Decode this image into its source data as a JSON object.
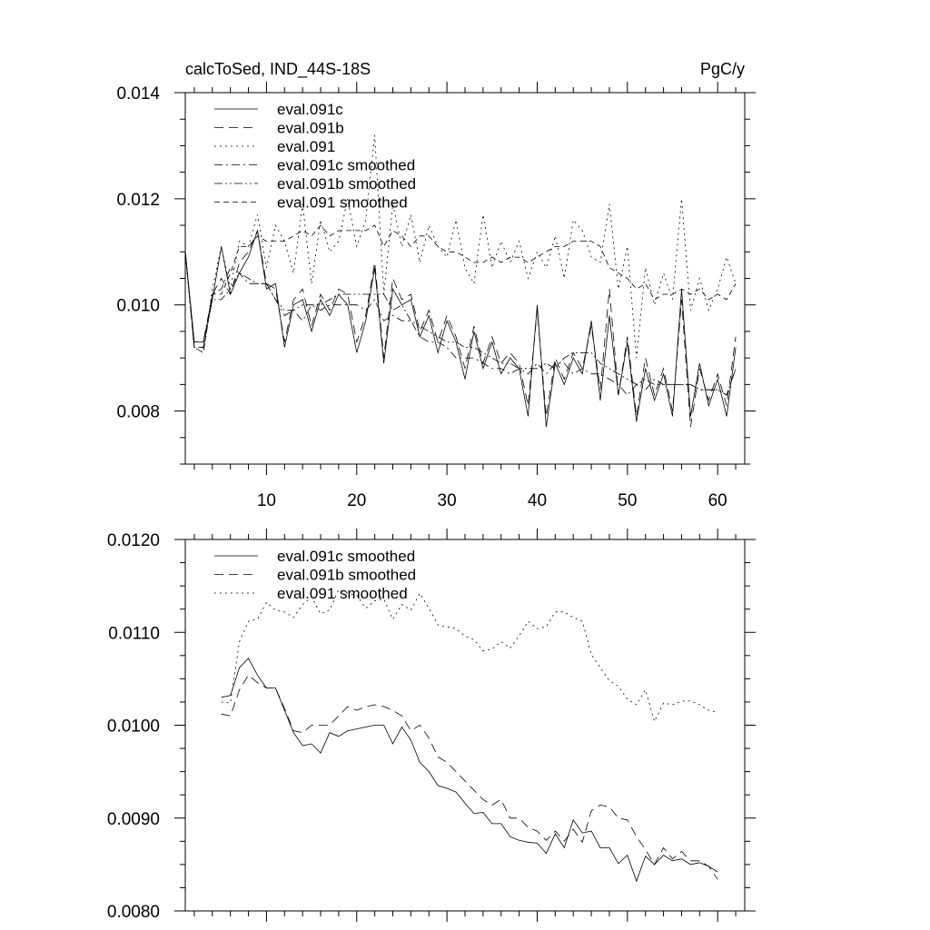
{
  "chart_data": [
    {
      "type": "line",
      "title": "calcToSed, IND_44S-18S",
      "units": "PgC/y",
      "xlabel": "",
      "ylabel": "",
      "xlim": [
        1,
        63
      ],
      "ylim": [
        0.007,
        0.014
      ],
      "x_ticks": [
        10,
        20,
        30,
        40,
        50,
        60
      ],
      "x_tick_labels": [
        "10",
        "20",
        "30",
        "40",
        "50",
        "60"
      ],
      "y_ticks": [
        0.008,
        0.01,
        0.012,
        0.014
      ],
      "y_tick_labels": [
        "0.008",
        "0.010",
        "0.012",
        "0.014"
      ],
      "legend_position": "top-left",
      "x": [
        1,
        2,
        3,
        4,
        5,
        6,
        7,
        8,
        9,
        10,
        11,
        12,
        13,
        14,
        15,
        16,
        17,
        18,
        19,
        20,
        21,
        22,
        23,
        24,
        25,
        26,
        27,
        28,
        29,
        30,
        31,
        32,
        33,
        34,
        35,
        36,
        37,
        38,
        39,
        40,
        41,
        42,
        43,
        44,
        45,
        46,
        47,
        48,
        49,
        50,
        51,
        52,
        53,
        54,
        55,
        56,
        57,
        58,
        59,
        60,
        61,
        62
      ],
      "series": [
        {
          "name": "eval.091c",
          "dash": "solid",
          "values": [
            0.011,
            0.0093,
            0.0093,
            0.0101,
            0.0111,
            0.0102,
            0.0106,
            0.0109,
            0.0114,
            0.0103,
            0.0104,
            0.0092,
            0.01,
            0.0101,
            0.0095,
            0.0101,
            0.0098,
            0.0102,
            0.01,
            0.0091,
            0.0097,
            0.0107,
            0.0089,
            0.0103,
            0.01,
            0.0101,
            0.0094,
            0.0098,
            0.0091,
            0.0097,
            0.0093,
            0.0086,
            0.0095,
            0.0088,
            0.0093,
            0.0087,
            0.009,
            0.0088,
            0.0079,
            0.01,
            0.0077,
            0.0089,
            0.0085,
            0.009,
            0.0087,
            0.0097,
            0.0082,
            0.0098,
            0.0083,
            0.0093,
            0.0078,
            0.0088,
            0.0082,
            0.0087,
            0.0079,
            0.0103,
            0.0079,
            0.0089,
            0.0081,
            0.0086,
            0.0079,
            0.0092
          ]
        },
        {
          "name": "eval.091b",
          "dash": "longdash",
          "values": [
            0.011,
            0.0092,
            0.0092,
            0.0102,
            0.0105,
            0.0102,
            0.0108,
            0.011,
            0.0114,
            0.0104,
            0.0103,
            0.0093,
            0.0101,
            0.0103,
            0.0096,
            0.0102,
            0.0099,
            0.0103,
            0.0102,
            0.0093,
            0.0098,
            0.0108,
            0.009,
            0.0105,
            0.0101,
            0.0102,
            0.0095,
            0.0099,
            0.0093,
            0.0098,
            0.0094,
            0.0088,
            0.0096,
            0.0089,
            0.0094,
            0.0089,
            0.0091,
            0.0089,
            0.0081,
            0.0099,
            0.0079,
            0.009,
            0.0086,
            0.0091,
            0.0088,
            0.0096,
            0.0084,
            0.0103,
            0.0083,
            0.0094,
            0.0079,
            0.009,
            0.0083,
            0.0088,
            0.008,
            0.0101,
            0.0077,
            0.0088,
            0.0082,
            0.0087,
            0.0081,
            0.0094
          ]
        },
        {
          "name": "eval.091",
          "dash": "dotted",
          "values": [
            0.011,
            0.0092,
            0.0091,
            0.0103,
            0.0111,
            0.0103,
            0.0112,
            0.0111,
            0.0117,
            0.0107,
            0.0115,
            0.0112,
            0.0106,
            0.0119,
            0.0104,
            0.0116,
            0.011,
            0.0112,
            0.012,
            0.0111,
            0.0116,
            0.0132,
            0.0102,
            0.0119,
            0.0111,
            0.0117,
            0.0108,
            0.0115,
            0.0111,
            0.0109,
            0.0116,
            0.0107,
            0.0104,
            0.0117,
            0.0107,
            0.0112,
            0.0108,
            0.0112,
            0.0105,
            0.011,
            0.0107,
            0.0113,
            0.0105,
            0.0116,
            0.0114,
            0.0109,
            0.0108,
            0.0119,
            0.0103,
            0.0111,
            0.009,
            0.0107,
            0.01,
            0.0106,
            0.0101,
            0.012,
            0.0099,
            0.0105,
            0.0099,
            0.0103,
            0.0109,
            0.0104
          ]
        },
        {
          "name": "eval.091c smoothed",
          "dash": "dashdot",
          "values": [
            0.011,
            0.0093,
            0.0093,
            0.0102,
            0.0103,
            0.0107,
            0.0106,
            0.0104,
            0.0104,
            0.0104,
            0.0101,
            0.0098,
            0.0099,
            0.0097,
            0.01,
            0.0099,
            0.01,
            0.01,
            0.01,
            0.01,
            0.0099,
            0.0101,
            0.0097,
            0.0098,
            0.0097,
            0.0097,
            0.0094,
            0.0093,
            0.0093,
            0.0092,
            0.009,
            0.009,
            0.009,
            0.0089,
            0.0088,
            0.0088,
            0.0087,
            0.0088,
            0.0087,
            0.0089,
            0.0087,
            0.0089,
            0.0089,
            0.0087,
            0.0088,
            0.0087,
            0.0087,
            0.0086,
            0.0085,
            0.0083,
            0.0085,
            0.0084,
            0.0086,
            0.0085,
            0.0085,
            0.0085,
            0.0085,
            0.0084,
            0.0084,
            0.0084,
            0.0083,
            0.0088
          ]
        },
        {
          "name": "eval.091b smoothed",
          "dash": "dashdotdot",
          "values": [
            0.011,
            0.0092,
            0.0092,
            0.0101,
            0.0101,
            0.0103,
            0.0106,
            0.0105,
            0.0104,
            0.0104,
            0.0101,
            0.0099,
            0.0099,
            0.01,
            0.01,
            0.01,
            0.0101,
            0.0102,
            0.0102,
            0.0102,
            0.0102,
            0.0102,
            0.0102,
            0.0099,
            0.01,
            0.0097,
            0.0096,
            0.0095,
            0.0094,
            0.0093,
            0.0093,
            0.0092,
            0.0092,
            0.0091,
            0.009,
            0.0089,
            0.0089,
            0.0088,
            0.0088,
            0.0088,
            0.0089,
            0.0088,
            0.009,
            0.0091,
            0.0091,
            0.0091,
            0.0089,
            0.0088,
            0.0087,
            0.0086,
            0.0085,
            0.0086,
            0.0085,
            0.0085,
            0.0085,
            0.0085,
            0.0085,
            0.0084,
            0.0084,
            0.0084,
            0.0083,
            0.0088
          ]
        },
        {
          "name": "eval.091 smoothed",
          "dash": "mediumdash",
          "values": [
            0.011,
            0.0092,
            0.0091,
            0.0102,
            0.0102,
            0.0106,
            0.0111,
            0.0111,
            0.0113,
            0.0112,
            0.0112,
            0.0112,
            0.0113,
            0.0114,
            0.0113,
            0.0115,
            0.0113,
            0.0114,
            0.0114,
            0.0114,
            0.0114,
            0.0115,
            0.0111,
            0.0114,
            0.0113,
            0.0111,
            0.0113,
            0.0113,
            0.0111,
            0.011,
            0.011,
            0.0109,
            0.0108,
            0.0108,
            0.0109,
            0.0108,
            0.0109,
            0.0109,
            0.0108,
            0.0109,
            0.011,
            0.0111,
            0.0111,
            0.0112,
            0.0112,
            0.0112,
            0.0111,
            0.0107,
            0.0106,
            0.0105,
            0.0103,
            0.0104,
            0.0101,
            0.0102,
            0.0102,
            0.0103,
            0.0102,
            0.0103,
            0.0101,
            0.0102,
            0.0101,
            0.0104
          ]
        }
      ]
    },
    {
      "type": "line",
      "title": "",
      "xlabel": "",
      "ylabel": "",
      "xlim": [
        1,
        63
      ],
      "ylim": [
        0.008,
        0.012
      ],
      "x_ticks": [
        10,
        20,
        30,
        40,
        50,
        60
      ],
      "y_ticks": [
        0.008,
        0.009,
        0.01,
        0.011,
        0.012
      ],
      "y_tick_labels": [
        "0.0080",
        "0.0090",
        "0.0100",
        "0.0110",
        "0.0120"
      ],
      "legend_position": "top-left",
      "x": [
        5,
        6,
        7,
        8,
        9,
        10,
        11,
        12,
        13,
        14,
        15,
        16,
        17,
        18,
        19,
        20,
        21,
        22,
        23,
        24,
        25,
        26,
        27,
        28,
        29,
        30,
        31,
        32,
        33,
        34,
        35,
        36,
        37,
        38,
        39,
        40,
        41,
        42,
        43,
        44,
        45,
        46,
        47,
        48,
        49,
        50,
        51,
        52,
        53,
        54,
        55,
        56,
        57,
        58,
        59,
        60
      ],
      "series": [
        {
          "name": "eval.091c smoothed",
          "dash": "solid",
          "values": [
            0.0103,
            0.01032,
            0.01062,
            0.01072,
            0.01054,
            0.0104,
            0.0104,
            0.01016,
            0.00992,
            0.00978,
            0.0098,
            0.0097,
            0.00992,
            0.00988,
            0.00994,
            0.00996,
            0.00998,
            0.01,
            0.01,
            0.0098,
            0.00998,
            0.00984,
            0.0096,
            0.0095,
            0.00935,
            0.00932,
            0.00928,
            0.00916,
            0.00905,
            0.00906,
            0.00894,
            0.00894,
            0.0088,
            0.00876,
            0.00874,
            0.00873,
            0.00862,
            0.00883,
            0.00868,
            0.00898,
            0.00884,
            0.00886,
            0.00868,
            0.00868,
            0.00851,
            0.0086,
            0.00832,
            0.00859,
            0.0085,
            0.0086,
            0.00854,
            0.00856,
            0.0085,
            0.00852,
            0.00848,
            0.00842
          ]
        },
        {
          "name": "eval.091b smoothed",
          "dash": "longdash",
          "values": [
            0.01012,
            0.0101,
            0.01038,
            0.01054,
            0.01046,
            0.0104,
            0.0104,
            0.01018,
            0.00994,
            0.00992,
            0.01,
            0.01,
            0.01,
            0.0101,
            0.0102,
            0.01016,
            0.0102,
            0.01022,
            0.0102,
            0.01016,
            0.0101,
            0.00994,
            0.01,
            0.00986,
            0.00966,
            0.0096,
            0.0095,
            0.0094,
            0.0093,
            0.0092,
            0.00914,
            0.0092,
            0.009,
            0.009,
            0.0089,
            0.00886,
            0.00876,
            0.00886,
            0.00875,
            0.00888,
            0.00874,
            0.00908,
            0.00914,
            0.00912,
            0.009,
            0.00898,
            0.0088,
            0.00866,
            0.0085,
            0.00868,
            0.00856,
            0.00864,
            0.00854,
            0.00854,
            0.00848,
            0.00834
          ]
        },
        {
          "name": "eval.091 smoothed",
          "dash": "dotted",
          "values": [
            0.01025,
            0.01024,
            0.0109,
            0.01112,
            0.01114,
            0.01132,
            0.01124,
            0.01122,
            0.01116,
            0.0113,
            0.01138,
            0.0112,
            0.01124,
            0.01146,
            0.01142,
            0.0114,
            0.01126,
            0.01134,
            0.01136,
            0.01114,
            0.0113,
            0.01124,
            0.01142,
            0.01126,
            0.01108,
            0.01106,
            0.01104,
            0.01096,
            0.01092,
            0.0108,
            0.01082,
            0.0109,
            0.01083,
            0.01096,
            0.01112,
            0.01104,
            0.01106,
            0.01122,
            0.01122,
            0.01116,
            0.01112,
            0.01076,
            0.01062,
            0.01048,
            0.01042,
            0.01028,
            0.01022,
            0.01038,
            0.01004,
            0.01024,
            0.01022,
            0.01026,
            0.01026,
            0.01022,
            0.01016,
            0.01014
          ]
        }
      ]
    }
  ]
}
